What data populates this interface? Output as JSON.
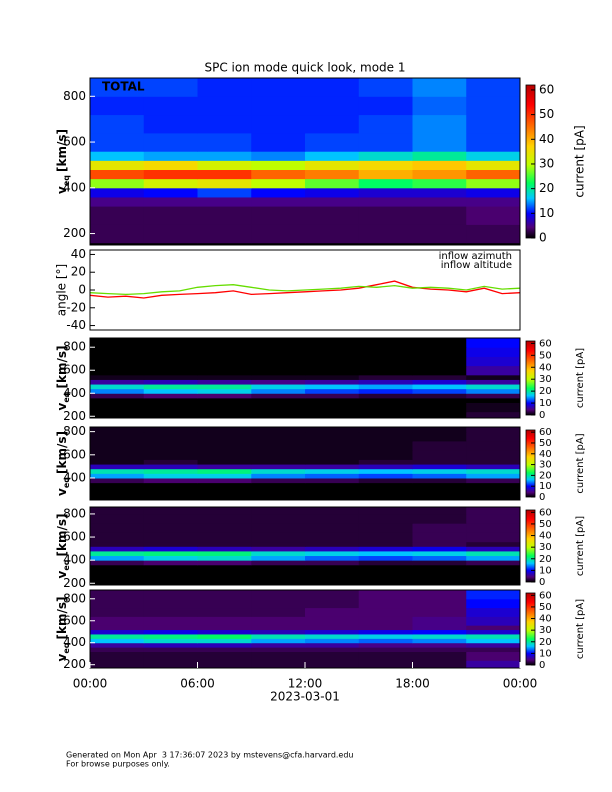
{
  "chart_data": [
    {
      "type": "heatmap",
      "title": "SPC ion mode quick look, mode 1",
      "label": "TOTAL",
      "ylabel": "v",
      "ylabel_subscript": "eq",
      "ylabel_units": "[km/s]",
      "ylim": [
        150,
        880
      ],
      "yticks": [
        200,
        400,
        600,
        800
      ],
      "xlim": [
        0,
        24
      ],
      "x_bins": [
        0,
        3,
        6,
        9,
        12,
        15,
        18,
        21,
        24
      ],
      "y_bins": [
        160,
        240,
        320,
        360,
        400,
        440,
        480,
        520,
        560,
        640,
        720,
        800,
        880
      ],
      "z": [
        [
          3,
          3,
          3,
          3,
          3,
          3,
          3,
          3
        ],
        [
          3,
          3,
          3,
          3,
          3,
          3,
          3,
          4
        ],
        [
          5,
          5,
          5,
          5,
          5,
          5,
          5,
          5
        ],
        [
          9,
          10,
          12,
          10,
          9,
          8,
          8,
          9
        ],
        [
          28,
          32,
          34,
          30,
          26,
          22,
          24,
          28
        ],
        [
          48,
          50,
          50,
          46,
          44,
          40,
          42,
          46
        ],
        [
          34,
          36,
          32,
          30,
          34,
          36,
          38,
          34
        ],
        [
          16,
          15,
          15,
          14,
          16,
          18,
          20,
          17
        ],
        [
          12,
          12,
          12,
          11,
          12,
          12,
          14,
          12
        ],
        [
          12,
          11,
          11,
          11,
          11,
          12,
          14,
          12
        ],
        [
          11,
          11,
          11,
          11,
          11,
          11,
          13,
          12
        ],
        [
          12,
          12,
          11,
          11,
          11,
          12,
          14,
          12
        ]
      ],
      "zlim": [
        0,
        62
      ],
      "zticks": [
        0,
        10,
        20,
        30,
        40,
        50,
        60
      ],
      "zlabel": "current [pA]"
    },
    {
      "type": "line",
      "ylabel": "angle [°]",
      "ylim": [
        -45,
        45
      ],
      "yticks": [
        -40,
        -20,
        0,
        20,
        40
      ],
      "xlim": [
        0,
        24
      ],
      "x": [
        0,
        1,
        2,
        3,
        4,
        5,
        6,
        7,
        8,
        9,
        10,
        11,
        12,
        13,
        14,
        15,
        16,
        17,
        18,
        19,
        20,
        21,
        22,
        23,
        24
      ],
      "series": [
        {
          "name": "inflow azimuth",
          "color": "#ff0000",
          "values": [
            -6,
            -8,
            -7,
            -9,
            -6,
            -5,
            -4,
            -3,
            -1,
            -5,
            -4,
            -3,
            -2,
            -1,
            0,
            2,
            6,
            10,
            3,
            1,
            0,
            -2,
            2,
            -4,
            -3
          ]
        },
        {
          "name": "inflow altitude",
          "color": "#66dd00",
          "values": [
            -3,
            -4,
            -5,
            -4,
            -2,
            -1,
            3,
            5,
            6,
            3,
            0,
            -1,
            0,
            1,
            2,
            4,
            3,
            5,
            2,
            3,
            2,
            0,
            4,
            1,
            2
          ]
        }
      ]
    },
    {
      "type": "heatmap",
      "ylabel": "v",
      "ylabel_subscript": "eq",
      "ylabel_units": "[km/s]",
      "ylim": [
        185,
        880
      ],
      "yticks": [
        200,
        400,
        600,
        800
      ],
      "xlim": [
        0,
        24
      ],
      "x_bins": [
        0,
        3,
        6,
        9,
        12,
        15,
        18,
        21,
        24
      ],
      "y_bins": [
        160,
        240,
        320,
        360,
        400,
        440,
        480,
        520,
        560,
        640,
        720,
        800,
        880
      ],
      "z": [
        [
          0,
          0,
          0,
          0,
          0,
          0,
          0,
          2
        ],
        [
          0,
          0,
          0,
          0,
          0,
          0,
          0,
          1
        ],
        [
          0,
          0,
          0,
          0,
          0,
          0,
          0,
          0
        ],
        [
          3,
          4,
          4,
          3,
          3,
          2,
          2,
          3
        ],
        [
          14,
          16,
          17,
          14,
          12,
          11,
          12,
          14
        ],
        [
          18,
          20,
          20,
          17,
          16,
          15,
          16,
          18
        ],
        [
          6,
          7,
          6,
          5,
          6,
          7,
          8,
          6
        ],
        [
          1,
          1,
          1,
          1,
          1,
          2,
          2,
          1
        ],
        [
          0,
          0,
          0,
          0,
          0,
          0,
          0,
          6
        ],
        [
          0,
          0,
          0,
          0,
          0,
          0,
          0,
          8
        ],
        [
          0,
          0,
          0,
          0,
          0,
          0,
          0,
          9
        ],
        [
          0,
          0,
          0,
          0,
          0,
          0,
          0,
          10
        ]
      ],
      "zlim": [
        0,
        62
      ],
      "zticks": [
        0,
        10,
        20,
        30,
        40,
        50,
        60
      ],
      "zlabel": "current [pA]"
    },
    {
      "type": "heatmap",
      "ylabel": "v",
      "ylabel_subscript": "eq",
      "ylabel_units": "[km/s]",
      "ylim": [
        210,
        840
      ],
      "yticks": [
        400,
        600,
        800
      ],
      "xlim": [
        0,
        24
      ],
      "x_bins": [
        0,
        3,
        6,
        9,
        12,
        15,
        18,
        21,
        24
      ],
      "y_bins": [
        160,
        240,
        320,
        360,
        400,
        440,
        480,
        520,
        560,
        640,
        720,
        800,
        880
      ],
      "z": [
        [
          0,
          0,
          0,
          0,
          0,
          0,
          0,
          0
        ],
        [
          0,
          0,
          0,
          0,
          0,
          0,
          0,
          0
        ],
        [
          0,
          0,
          0,
          0,
          0,
          0,
          0,
          0
        ],
        [
          3,
          4,
          4,
          3,
          3,
          2,
          2,
          3
        ],
        [
          15,
          17,
          17,
          14,
          13,
          12,
          13,
          15
        ],
        [
          19,
          20,
          21,
          18,
          17,
          16,
          17,
          18
        ],
        [
          7,
          7,
          6,
          6,
          6,
          7,
          8,
          7
        ],
        [
          1,
          2,
          1,
          1,
          1,
          2,
          2,
          2
        ],
        [
          1,
          1,
          1,
          1,
          1,
          1,
          2,
          2
        ],
        [
          1,
          1,
          1,
          1,
          1,
          1,
          2,
          2
        ],
        [
          1,
          1,
          1,
          1,
          1,
          1,
          1,
          2
        ],
        [
          1,
          1,
          1,
          1,
          1,
          1,
          1,
          2
        ]
      ],
      "zlim": [
        0,
        62
      ],
      "zticks": [
        0,
        10,
        20,
        30,
        40,
        50,
        60
      ],
      "zlabel": "current [pA]"
    },
    {
      "type": "heatmap",
      "ylabel": "v",
      "ylabel_subscript": "eq",
      "ylabel_units": "[km/s]",
      "ylim": [
        185,
        860
      ],
      "yticks": [
        200,
        400,
        600,
        800
      ],
      "xlim": [
        0,
        24
      ],
      "x_bins": [
        0,
        3,
        6,
        9,
        12,
        15,
        18,
        21,
        24
      ],
      "y_bins": [
        160,
        240,
        320,
        360,
        400,
        440,
        480,
        520,
        560,
        640,
        720,
        800,
        880
      ],
      "z": [
        [
          0,
          0,
          0,
          0,
          0,
          0,
          0,
          0
        ],
        [
          0,
          0,
          0,
          0,
          0,
          0,
          0,
          0
        ],
        [
          0,
          0,
          0,
          0,
          0,
          0,
          0,
          0
        ],
        [
          3,
          4,
          4,
          3,
          3,
          2,
          2,
          3
        ],
        [
          15,
          17,
          18,
          15,
          13,
          12,
          13,
          15
        ],
        [
          20,
          21,
          21,
          18,
          17,
          16,
          17,
          19
        ],
        [
          7,
          8,
          7,
          6,
          7,
          8,
          9,
          7
        ],
        [
          2,
          2,
          2,
          2,
          2,
          2,
          3,
          2
        ],
        [
          2,
          2,
          2,
          2,
          2,
          2,
          3,
          3
        ],
        [
          2,
          2,
          2,
          2,
          2,
          2,
          3,
          3
        ],
        [
          2,
          2,
          2,
          2,
          2,
          2,
          2,
          3
        ],
        [
          2,
          2,
          2,
          2,
          2,
          2,
          2,
          3
        ]
      ],
      "zlim": [
        0,
        62
      ],
      "zticks": [
        0,
        10,
        20,
        30,
        40,
        50,
        60
      ],
      "zlabel": "current [pA]"
    },
    {
      "type": "heatmap",
      "ylabel": "v",
      "ylabel_subscript": "eq",
      "ylabel_units": "[km/s]",
      "ylim": [
        170,
        880
      ],
      "yticks": [
        200,
        400,
        600,
        800
      ],
      "xlim": [
        0,
        24
      ],
      "xticks": [
        {
          "value": 0,
          "label": "00:00"
        },
        {
          "value": 6,
          "label": "06:00"
        },
        {
          "value": 12,
          "label": "12:00"
        },
        {
          "value": 18,
          "label": "18:00"
        },
        {
          "value": 24,
          "label": "00:00"
        }
      ],
      "xlabel": "2023-03-01",
      "x_bins": [
        0,
        3,
        6,
        9,
        12,
        15,
        18,
        21,
        24
      ],
      "y_bins": [
        160,
        240,
        320,
        360,
        400,
        440,
        480,
        520,
        560,
        640,
        720,
        800,
        880
      ],
      "z": [
        [
          2,
          2,
          2,
          2,
          2,
          2,
          2,
          6
        ],
        [
          2,
          2,
          2,
          2,
          2,
          2,
          2,
          4
        ],
        [
          3,
          3,
          3,
          3,
          3,
          3,
          3,
          3
        ],
        [
          6,
          7,
          7,
          6,
          6,
          5,
          5,
          6
        ],
        [
          16,
          18,
          18,
          15,
          14,
          13,
          14,
          16
        ],
        [
          20,
          21,
          22,
          19,
          18,
          17,
          18,
          19
        ],
        [
          8,
          9,
          8,
          7,
          8,
          9,
          10,
          8
        ],
        [
          4,
          4,
          4,
          4,
          4,
          4,
          5,
          4
        ],
        [
          4,
          4,
          4,
          4,
          4,
          4,
          5,
          7
        ],
        [
          3,
          3,
          3,
          3,
          4,
          4,
          4,
          8
        ],
        [
          3,
          3,
          3,
          3,
          3,
          4,
          4,
          10
        ],
        [
          3,
          3,
          3,
          3,
          3,
          4,
          4,
          11
        ]
      ],
      "zlim": [
        0,
        62
      ],
      "zticks": [
        0,
        10,
        20,
        30,
        40,
        50,
        60
      ],
      "zlabel": "current [pA]"
    }
  ],
  "footer": [
    "Generated on Mon Apr  3 17:36:07 2023 by mstevens@cfa.harvard.edu",
    "For browse purposes only."
  ]
}
